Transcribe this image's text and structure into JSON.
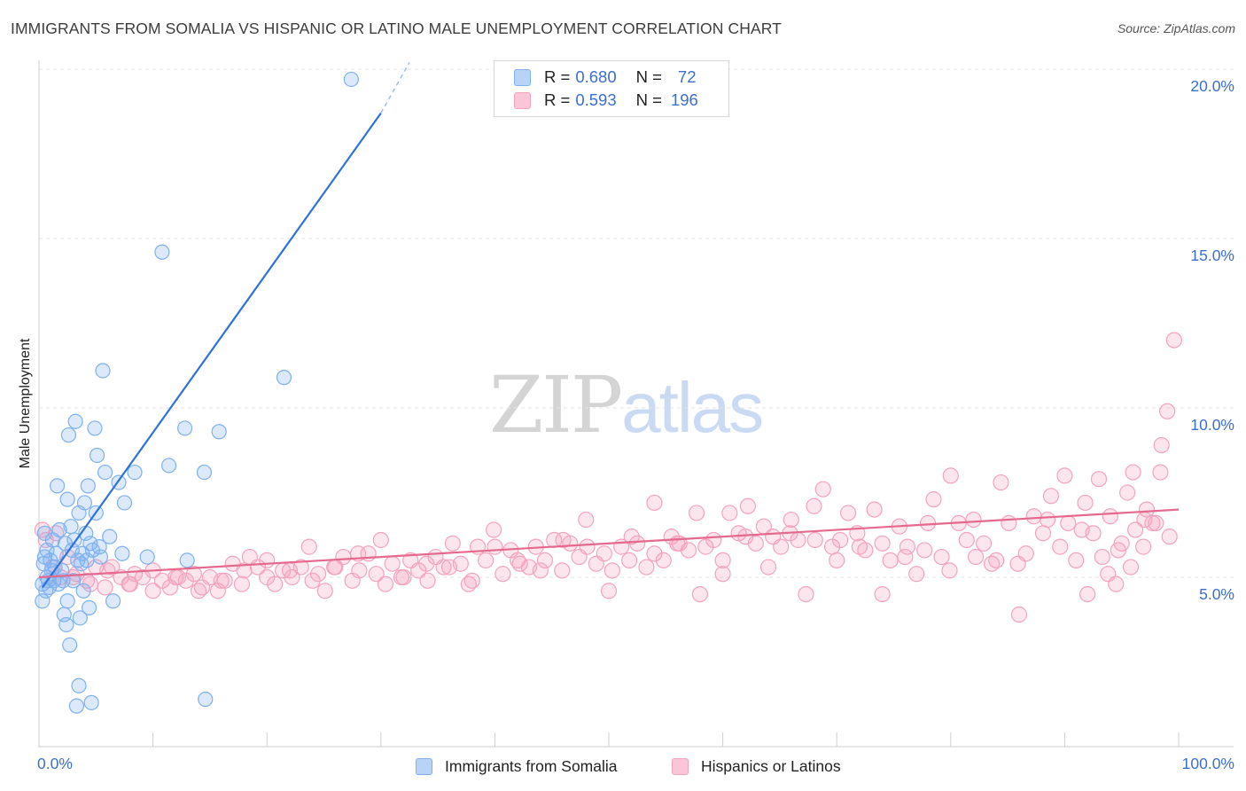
{
  "title": "IMMIGRANTS FROM SOMALIA VS HISPANIC OR LATINO MALE UNEMPLOYMENT CORRELATION CHART",
  "source": "Source: ZipAtlas.com",
  "watermark": {
    "zip": "ZIP",
    "atlas": "atlas"
  },
  "stats": [
    {
      "r_label": "R =",
      "r_value": "0.680",
      "n_label": "N =",
      "n_value": "72",
      "color": "#7fb0ef"
    },
    {
      "r_label": "R =",
      "r_value": "0.593",
      "n_label": "N =",
      "n_value": "196",
      "color": "#f4a3bf"
    }
  ],
  "chart_data": {
    "type": "scatter",
    "title": "IMMIGRANTS FROM SOMALIA VS HISPANIC OR LATINO MALE UNEMPLOYMENT CORRELATION CHART",
    "xlabel": "",
    "ylabel": "Male Unemployment",
    "xlim": [
      0,
      100
    ],
    "ylim": [
      0,
      20
    ],
    "x_ticks": [
      "0.0%",
      "100.0%"
    ],
    "y_ticks": [
      {
        "value": 5,
        "label": "5.0%"
      },
      {
        "value": 10,
        "label": "10.0%"
      },
      {
        "value": 15,
        "label": "15.0%"
      },
      {
        "value": 20,
        "label": "20.0%"
      }
    ],
    "grid": true,
    "legend_position": "bottom",
    "series": [
      {
        "name": "Immigrants from Somalia",
        "color": "#7fb0ef",
        "line_color": "#2f72d8",
        "trend": {
          "x": [
            0.3,
            30.0
          ],
          "y": [
            4.7,
            18.7
          ],
          "dashed_to": [
            32.5,
            20.2
          ]
        },
        "points": [
          [
            0.3,
            4.3
          ],
          [
            0.3,
            4.8
          ],
          [
            0.4,
            5.4
          ],
          [
            0.5,
            5.6
          ],
          [
            0.5,
            6.3
          ],
          [
            0.6,
            4.6
          ],
          [
            0.7,
            5.0
          ],
          [
            0.7,
            5.8
          ],
          [
            0.8,
            4.9
          ],
          [
            0.9,
            4.7
          ],
          [
            1.0,
            5.5
          ],
          [
            1.1,
            5.2
          ],
          [
            1.2,
            6.1
          ],
          [
            1.3,
            4.9
          ],
          [
            1.4,
            5.3
          ],
          [
            1.5,
            5.7
          ],
          [
            1.6,
            7.7
          ],
          [
            1.7,
            4.8
          ],
          [
            1.8,
            6.4
          ],
          [
            2.0,
            5.2
          ],
          [
            2.1,
            4.9
          ],
          [
            2.2,
            3.9
          ],
          [
            2.3,
            6.0
          ],
          [
            2.4,
            3.6
          ],
          [
            2.5,
            7.3
          ],
          [
            2.5,
            4.3
          ],
          [
            2.6,
            9.2
          ],
          [
            2.7,
            3.0
          ],
          [
            2.8,
            6.5
          ],
          [
            2.9,
            5.8
          ],
          [
            3.0,
            4.9
          ],
          [
            3.1,
            6.1
          ],
          [
            3.2,
            9.6
          ],
          [
            3.3,
            1.2
          ],
          [
            3.4,
            5.5
          ],
          [
            3.5,
            1.8
          ],
          [
            3.5,
            6.9
          ],
          [
            3.6,
            3.8
          ],
          [
            3.7,
            5.4
          ],
          [
            3.8,
            5.7
          ],
          [
            3.9,
            4.6
          ],
          [
            4.0,
            7.2
          ],
          [
            4.1,
            6.3
          ],
          [
            4.2,
            5.5
          ],
          [
            4.3,
            7.7
          ],
          [
            4.4,
            4.1
          ],
          [
            4.5,
            6.0
          ],
          [
            4.6,
            1.3
          ],
          [
            4.7,
            5.8
          ],
          [
            4.9,
            9.4
          ],
          [
            5.0,
            6.9
          ],
          [
            5.1,
            8.6
          ],
          [
            5.3,
            5.9
          ],
          [
            5.4,
            5.6
          ],
          [
            5.6,
            11.1
          ],
          [
            5.8,
            8.1
          ],
          [
            6.2,
            6.2
          ],
          [
            7.0,
            7.8
          ],
          [
            7.3,
            5.7
          ],
          [
            7.5,
            7.2
          ],
          [
            8.4,
            8.1
          ],
          [
            9.5,
            5.6
          ],
          [
            10.8,
            14.6
          ],
          [
            11.4,
            8.3
          ],
          [
            12.8,
            9.4
          ],
          [
            13.0,
            5.5
          ],
          [
            14.6,
            1.4
          ],
          [
            14.5,
            8.1
          ],
          [
            15.8,
            9.3
          ],
          [
            21.5,
            10.9
          ],
          [
            27.4,
            19.7
          ],
          [
            6.5,
            4.3
          ]
        ]
      },
      {
        "name": "Hispanics or Latinos",
        "color": "#f4a3bf",
        "line_color": "#e5698f",
        "trend": {
          "x": [
            0.0,
            100.0
          ],
          "y": [
            5.0,
            7.0
          ]
        },
        "points": [
          [
            0.3,
            6.4
          ],
          [
            0.6,
            6.1
          ],
          [
            1.2,
            5.3
          ],
          [
            1.9,
            5.0
          ],
          [
            2.5,
            5.6
          ],
          [
            3.3,
            5.1
          ],
          [
            4.2,
            4.9
          ],
          [
            5.0,
            5.3
          ],
          [
            5.8,
            4.7
          ],
          [
            6.4,
            5.3
          ],
          [
            7.2,
            5.0
          ],
          [
            7.9,
            4.8
          ],
          [
            8.4,
            5.1
          ],
          [
            9.1,
            5.0
          ],
          [
            10.0,
            5.2
          ],
          [
            10.8,
            4.9
          ],
          [
            11.5,
            4.7
          ],
          [
            12.2,
            5.0
          ],
          [
            12.9,
            4.9
          ],
          [
            13.6,
            5.1
          ],
          [
            14.3,
            4.7
          ],
          [
            15.0,
            5.0
          ],
          [
            15.7,
            4.6
          ],
          [
            16.3,
            4.9
          ],
          [
            17.0,
            5.4
          ],
          [
            17.8,
            4.8
          ],
          [
            18.5,
            5.6
          ],
          [
            19.2,
            5.3
          ],
          [
            20.0,
            5.0
          ],
          [
            20.7,
            4.8
          ],
          [
            21.4,
            5.2
          ],
          [
            22.2,
            5.0
          ],
          [
            23.0,
            5.3
          ],
          [
            23.7,
            5.9
          ],
          [
            24.5,
            5.1
          ],
          [
            25.1,
            4.6
          ],
          [
            25.9,
            5.3
          ],
          [
            26.7,
            5.6
          ],
          [
            27.5,
            4.9
          ],
          [
            28.1,
            5.2
          ],
          [
            28.9,
            5.7
          ],
          [
            29.6,
            5.1
          ],
          [
            30.4,
            4.8
          ],
          [
            31.0,
            5.4
          ],
          [
            31.8,
            5.0
          ],
          [
            32.6,
            5.5
          ],
          [
            33.3,
            5.2
          ],
          [
            34.1,
            4.9
          ],
          [
            34.8,
            5.6
          ],
          [
            35.5,
            5.3
          ],
          [
            36.3,
            6.0
          ],
          [
            37.0,
            5.4
          ],
          [
            37.7,
            4.8
          ],
          [
            38.5,
            5.9
          ],
          [
            39.2,
            5.5
          ],
          [
            39.9,
            6.4
          ],
          [
            40.7,
            5.1
          ],
          [
            41.4,
            5.8
          ],
          [
            42.2,
            5.4
          ],
          [
            43.0,
            5.3
          ],
          [
            43.6,
            5.9
          ],
          [
            44.4,
            5.5
          ],
          [
            45.2,
            6.1
          ],
          [
            45.9,
            5.2
          ],
          [
            46.6,
            6.0
          ],
          [
            47.4,
            5.6
          ],
          [
            48.1,
            5.9
          ],
          [
            48.9,
            5.4
          ],
          [
            49.6,
            5.7
          ],
          [
            50.3,
            5.2
          ],
          [
            51.1,
            5.9
          ],
          [
            51.8,
            5.5
          ],
          [
            52.5,
            6.0
          ],
          [
            53.3,
            5.3
          ],
          [
            54.0,
            5.7
          ],
          [
            54.8,
            5.5
          ],
          [
            55.5,
            6.2
          ],
          [
            56.2,
            6.0
          ],
          [
            57.0,
            5.8
          ],
          [
            57.7,
            6.9
          ],
          [
            58.5,
            5.9
          ],
          [
            59.2,
            6.1
          ],
          [
            60.0,
            5.5
          ],
          [
            60.6,
            6.9
          ],
          [
            61.4,
            6.3
          ],
          [
            62.2,
            7.1
          ],
          [
            62.9,
            6.0
          ],
          [
            63.6,
            6.5
          ],
          [
            64.4,
            6.2
          ],
          [
            65.1,
            5.9
          ],
          [
            65.9,
            6.3
          ],
          [
            66.6,
            6.1
          ],
          [
            67.3,
            4.5
          ],
          [
            68.1,
            6.1
          ],
          [
            68.8,
            7.6
          ],
          [
            69.6,
            5.9
          ],
          [
            70.3,
            6.1
          ],
          [
            71.0,
            6.9
          ],
          [
            71.8,
            6.3
          ],
          [
            72.5,
            5.8
          ],
          [
            73.3,
            7.0
          ],
          [
            74.0,
            6.0
          ],
          [
            74.7,
            5.5
          ],
          [
            75.5,
            6.5
          ],
          [
            76.2,
            5.9
          ],
          [
            77.0,
            5.1
          ],
          [
            77.7,
            5.8
          ],
          [
            78.5,
            7.3
          ],
          [
            79.2,
            5.6
          ],
          [
            79.9,
            5.2
          ],
          [
            80.7,
            6.6
          ],
          [
            81.4,
            6.1
          ],
          [
            82.2,
            5.6
          ],
          [
            82.9,
            6.0
          ],
          [
            83.6,
            5.4
          ],
          [
            84.4,
            7.8
          ],
          [
            85.1,
            6.6
          ],
          [
            85.9,
            5.4
          ],
          [
            86.6,
            5.7
          ],
          [
            87.3,
            6.8
          ],
          [
            88.1,
            6.3
          ],
          [
            88.8,
            7.4
          ],
          [
            89.6,
            5.9
          ],
          [
            90.3,
            6.6
          ],
          [
            91.0,
            5.5
          ],
          [
            91.8,
            7.2
          ],
          [
            92.5,
            6.3
          ],
          [
            93.3,
            5.6
          ],
          [
            94.0,
            6.8
          ],
          [
            94.7,
            5.8
          ],
          [
            95.5,
            7.5
          ],
          [
            96.2,
            6.4
          ],
          [
            96.9,
            5.9
          ],
          [
            97.7,
            6.6
          ],
          [
            98.4,
            8.1
          ],
          [
            99.2,
            6.2
          ],
          [
            92.0,
            4.5
          ],
          [
            93.8,
            5.1
          ],
          [
            95.0,
            6.0
          ],
          [
            96.0,
            8.1
          ],
          [
            97.2,
            7.0
          ],
          [
            98.0,
            6.6
          ],
          [
            99.0,
            9.9
          ],
          [
            99.6,
            12.0
          ],
          [
            98.5,
            8.9
          ],
          [
            97.0,
            6.7
          ],
          [
            95.8,
            5.3
          ],
          [
            94.5,
            4.8
          ],
          [
            93.0,
            7.9
          ],
          [
            91.5,
            6.4
          ],
          [
            90.0,
            8.0
          ],
          [
            88.5,
            6.7
          ],
          [
            86.0,
            3.9
          ],
          [
            84.0,
            5.5
          ],
          [
            82.0,
            6.7
          ],
          [
            80.0,
            8.0
          ],
          [
            78.0,
            6.6
          ],
          [
            76.0,
            5.6
          ],
          [
            74.0,
            4.5
          ],
          [
            72.0,
            5.9
          ],
          [
            70.0,
            5.5
          ],
          [
            68.0,
            7.1
          ],
          [
            66.0,
            6.7
          ],
          [
            64.0,
            5.3
          ],
          [
            62.0,
            6.2
          ],
          [
            60.0,
            5.1
          ],
          [
            58.0,
            4.5
          ],
          [
            56.0,
            6.0
          ],
          [
            54.0,
            7.2
          ],
          [
            52.0,
            6.2
          ],
          [
            50.0,
            4.6
          ],
          [
            48.0,
            6.7
          ],
          [
            46.0,
            6.1
          ],
          [
            44.0,
            5.2
          ],
          [
            42.0,
            5.5
          ],
          [
            40.0,
            5.9
          ],
          [
            38.0,
            4.9
          ],
          [
            36.0,
            5.3
          ],
          [
            34.0,
            5.4
          ],
          [
            32.0,
            5.0
          ],
          [
            30.0,
            6.1
          ],
          [
            28.0,
            5.7
          ],
          [
            26.0,
            5.3
          ],
          [
            24.0,
            4.9
          ],
          [
            22.0,
            5.2
          ],
          [
            20.0,
            5.5
          ],
          [
            18.0,
            5.2
          ],
          [
            16.0,
            4.9
          ],
          [
            14.0,
            4.6
          ],
          [
            12.0,
            5.0
          ],
          [
            10.0,
            4.6
          ],
          [
            8.0,
            4.8
          ],
          [
            6.0,
            5.2
          ],
          [
            4.5,
            4.8
          ],
          [
            3.0,
            5.0
          ],
          [
            1.5,
            6.3
          ]
        ]
      }
    ]
  }
}
